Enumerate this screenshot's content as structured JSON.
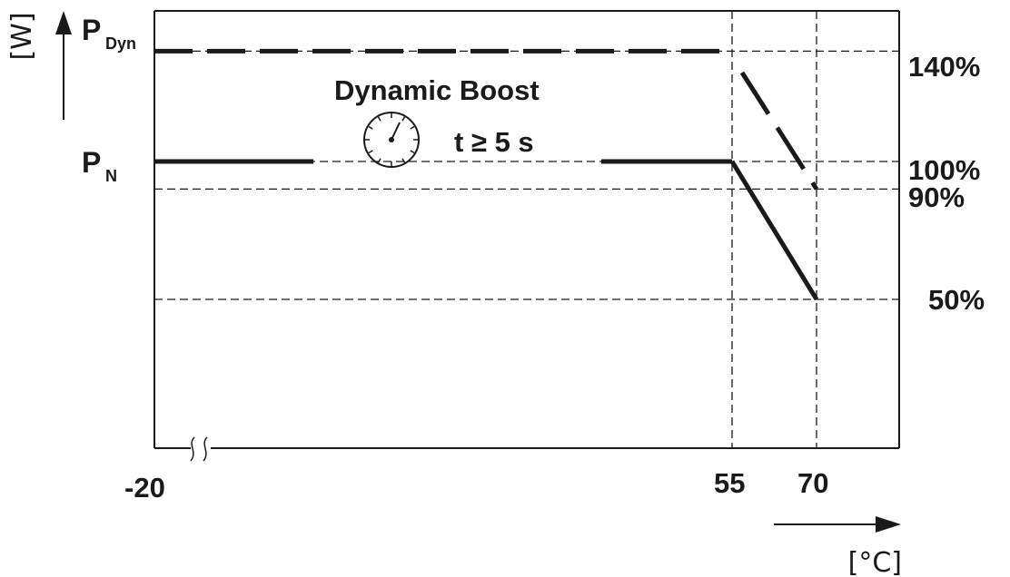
{
  "chart_data": {
    "type": "line",
    "title": "",
    "xlabel": "[°C]",
    "ylabel": "[W]",
    "x_axis_ticks": [
      "-20",
      "55",
      "70"
    ],
    "y_axis_labels": {
      "p_dyn": {
        "main": "P",
        "sub": "Dyn"
      },
      "p_n": {
        "main": "P",
        "sub": "N"
      }
    },
    "right_tick_labels": [
      "140%",
      "100%",
      "90%",
      "50%"
    ],
    "annotation": {
      "title": "Dynamic Boost",
      "duration": "t ≥ 5 s",
      "icon": "stopwatch-icon"
    },
    "xlim": [
      -20,
      80
    ],
    "ylim_percent": [
      0,
      160
    ],
    "axis_break": true,
    "series": [
      {
        "style": "dashed",
        "points": [
          [
            -20,
            140
          ],
          [
            55,
            140
          ],
          [
            55,
            140
          ],
          [
            70,
            90
          ]
        ]
      },
      {
        "style": "solid",
        "points": [
          [
            -20,
            100
          ],
          [
            55,
            100
          ],
          [
            70,
            50
          ]
        ]
      }
    ],
    "reference_lines": {
      "horizontal_percent": [
        140,
        100,
        90,
        50
      ],
      "vertical_x": [
        55,
        70
      ]
    },
    "colors": {
      "line": "#1a1a1a",
      "background": "#ffffff"
    }
  }
}
